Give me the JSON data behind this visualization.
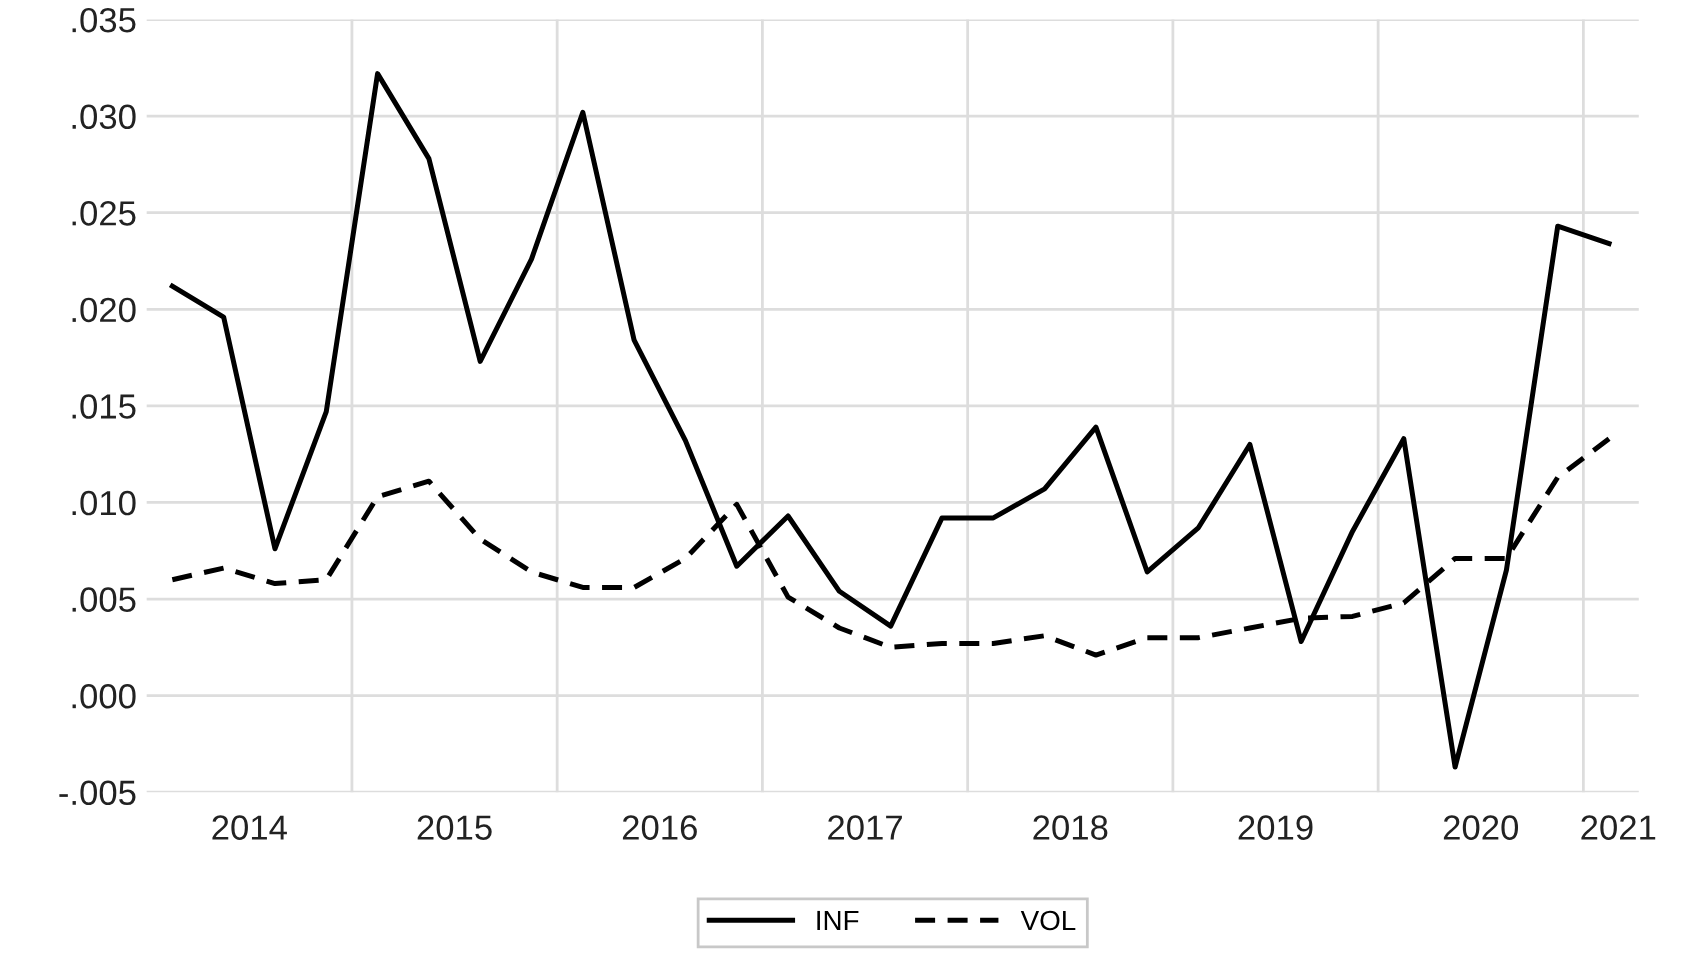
{
  "chart_data": {
    "type": "line",
    "x": [
      2014.125,
      2014.375,
      2014.625,
      2014.875,
      2015.125,
      2015.375,
      2015.625,
      2015.875,
      2016.125,
      2016.375,
      2016.625,
      2016.875,
      2017.125,
      2017.375,
      2017.625,
      2017.875,
      2018.125,
      2018.375,
      2018.625,
      2018.875,
      2019.125,
      2019.375,
      2019.625,
      2019.875,
      2020.125,
      2020.375,
      2020.625,
      2020.875,
      2021.125
    ],
    "series": [
      {
        "name": "INF",
        "color": "#000000",
        "line_style": "solid",
        "values": [
          0.0212,
          0.0196,
          0.0076,
          0.0147,
          0.0322,
          0.0278,
          0.0173,
          0.0226,
          0.0302,
          0.0184,
          0.0132,
          0.0067,
          0.0093,
          0.0054,
          0.0036,
          0.0092,
          0.0092,
          0.0107,
          0.0139,
          0.0064,
          0.0087,
          0.013,
          0.0028,
          0.0085,
          0.0133,
          -0.0037,
          0.0065,
          0.0243,
          0.0234
        ]
      },
      {
        "name": "VOL",
        "color": "#000000",
        "line_style": "dashed",
        "values": [
          0.006,
          0.0066,
          0.0058,
          0.006,
          0.0103,
          0.0111,
          0.0081,
          0.0064,
          0.0056,
          0.0056,
          0.0071,
          0.0099,
          0.0051,
          0.0035,
          0.0025,
          0.0027,
          0.0027,
          0.0031,
          0.0021,
          0.003,
          0.003,
          0.0035,
          0.004,
          0.0041,
          0.0048,
          0.0071,
          0.0071,
          0.0113,
          0.0133
        ]
      }
    ],
    "xlim": [
      2014,
      2021.27
    ],
    "xticks": [
      {
        "value": 2014.5,
        "label": "2014"
      },
      {
        "value": 2015,
        "label": null
      },
      {
        "value": 2015.5,
        "label": "2015"
      },
      {
        "value": 2016,
        "label": null
      },
      {
        "value": 2016.5,
        "label": "2016"
      },
      {
        "value": 2017,
        "label": null
      },
      {
        "value": 2017.5,
        "label": "2017"
      },
      {
        "value": 2018,
        "label": null
      },
      {
        "value": 2018.5,
        "label": "2018"
      },
      {
        "value": 2019,
        "label": null
      },
      {
        "value": 2019.5,
        "label": "2019"
      },
      {
        "value": 2020,
        "label": null
      },
      {
        "value": 2020.5,
        "label": "2020"
      },
      {
        "value": 2021,
        "label": null
      },
      {
        "value": 2021.17,
        "label": "2021"
      }
    ],
    "ylim": [
      -0.005,
      0.035
    ],
    "yticks": [
      {
        "value": -0.005,
        "label": "-.005"
      },
      {
        "value": 0.0,
        "label": ".000"
      },
      {
        "value": 0.005,
        "label": ".005"
      },
      {
        "value": 0.01,
        "label": ".010"
      },
      {
        "value": 0.015,
        "label": ".015"
      },
      {
        "value": 0.02,
        "label": ".020"
      },
      {
        "value": 0.025,
        "label": ".025"
      },
      {
        "value": 0.03,
        "label": ".030"
      },
      {
        "value": 0.035,
        "label": ".035"
      }
    ],
    "grid": true,
    "legend": "bottom"
  }
}
